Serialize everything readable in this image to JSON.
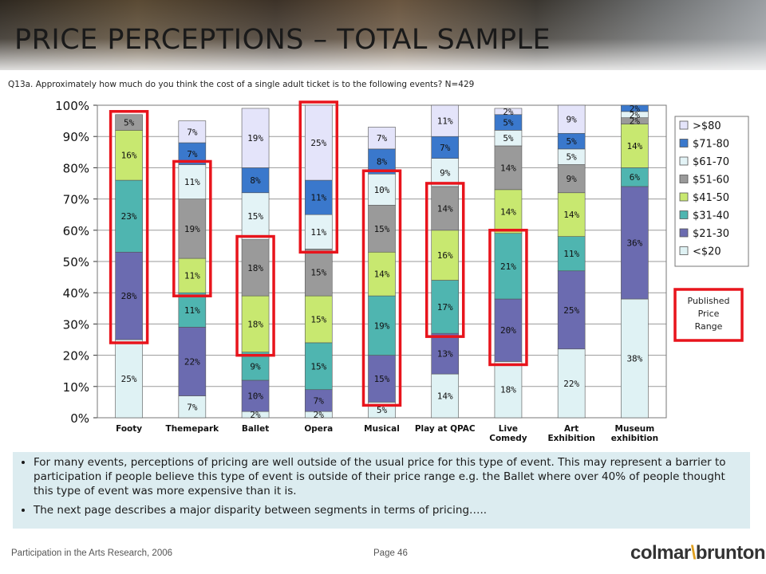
{
  "page": {
    "title": "PRICE PERCEPTIONS – TOTAL SAMPLE",
    "question": "Q13a.  Approximately how much do you think the cost of a single adult ticket is to the following events? N=429",
    "notes": [
      "For many events, perceptions of pricing are well outside of the usual price for this type of event. This may represent a barrier to participation if people believe this type of event is outside of their price range e.g. the Ballet where over 40% of people thought this type of event was more expensive than it is.",
      "The next page describes a major disparity between segments in terms of pricing….."
    ],
    "footer_left": "Participation in the Arts Research, 2006",
    "footer_page": "Page 46",
    "logo_a": "colmar",
    "logo_b": "brunton"
  },
  "chart_data": {
    "type": "bar",
    "stacked": true,
    "categories": [
      "Footy",
      "Themepark",
      "Ballet",
      "Opera",
      "Musical",
      "Play at QPAC",
      "Live Comedy",
      "Art Exhibition",
      "Museum exhibition"
    ],
    "category_labels": [
      [
        "Footy"
      ],
      [
        "Themepark"
      ],
      [
        "Ballet"
      ],
      [
        "Opera"
      ],
      [
        "Musical"
      ],
      [
        "Play at QPAC"
      ],
      [
        "Live",
        "Comedy"
      ],
      [
        "Art",
        "Exhibition"
      ],
      [
        "Museum",
        "exhibition"
      ]
    ],
    "series": [
      {
        "name": "<$20",
        "color": "#dff2f4",
        "values": [
          25,
          7,
          2,
          2,
          5,
          14,
          18,
          22,
          38
        ]
      },
      {
        "name": "$21-30",
        "color": "#6b6bb0",
        "values": [
          28,
          22,
          10,
          7,
          15,
          13,
          20,
          25,
          36
        ]
      },
      {
        "name": "$31-40",
        "color": "#4fb5b0",
        "values": [
          23,
          11,
          9,
          15,
          19,
          17,
          21,
          11,
          6
        ]
      },
      {
        "name": "$41-50",
        "color": "#c8e870",
        "values": [
          16,
          11,
          18,
          15,
          14,
          16,
          14,
          14,
          14
        ]
      },
      {
        "name": "$51-60",
        "color": "#9a9a9a",
        "values": [
          5,
          19,
          18,
          15,
          15,
          14,
          14,
          9,
          2
        ]
      },
      {
        "name": "$61-70",
        "color": "#e3f3f6",
        "values": [
          0,
          11,
          15,
          11,
          10,
          9,
          5,
          5,
          2
        ]
      },
      {
        "name": "$71-80",
        "color": "#3a78cc",
        "values": [
          0,
          7,
          8,
          11,
          8,
          7,
          5,
          5,
          2
        ]
      },
      {
        "name": ">$80",
        "color": "#e4e4fa",
        "values": [
          0,
          7,
          19,
          25,
          7,
          11,
          2,
          9,
          0
        ]
      }
    ],
    "legend_order": [
      ">$80",
      "$71-80",
      "$61-70",
      "$51-60",
      "$41-50",
      "$31-40",
      "$21-30",
      "<$20"
    ],
    "ylim": [
      0,
      100
    ],
    "yticks": [
      "0%",
      "10%",
      "20%",
      "30%",
      "40%",
      "50%",
      "60%",
      "70%",
      "80%",
      "90%",
      "100%"
    ],
    "grid": true,
    "legend_position": "right",
    "published_range_label": "Published Price Range",
    "published_ranges": [
      {
        "category": "Footy",
        "from": "$21-30",
        "to": "$51-60"
      },
      {
        "category": "Themepark",
        "from": "$41-50",
        "to": "$61-70"
      },
      {
        "category": "Ballet",
        "from": "$41-50",
        "to": "$51-60"
      },
      {
        "category": "Opera",
        "from": "$61-70",
        "to": ">$80"
      },
      {
        "category": "Musical",
        "from": "$21-30",
        "to": "$61-70"
      },
      {
        "category": "Play at QPAC",
        "from": "$31-40",
        "to": "$51-60"
      },
      {
        "category": "Live Comedy",
        "from": "$21-30",
        "to": "$31-40"
      }
    ]
  }
}
